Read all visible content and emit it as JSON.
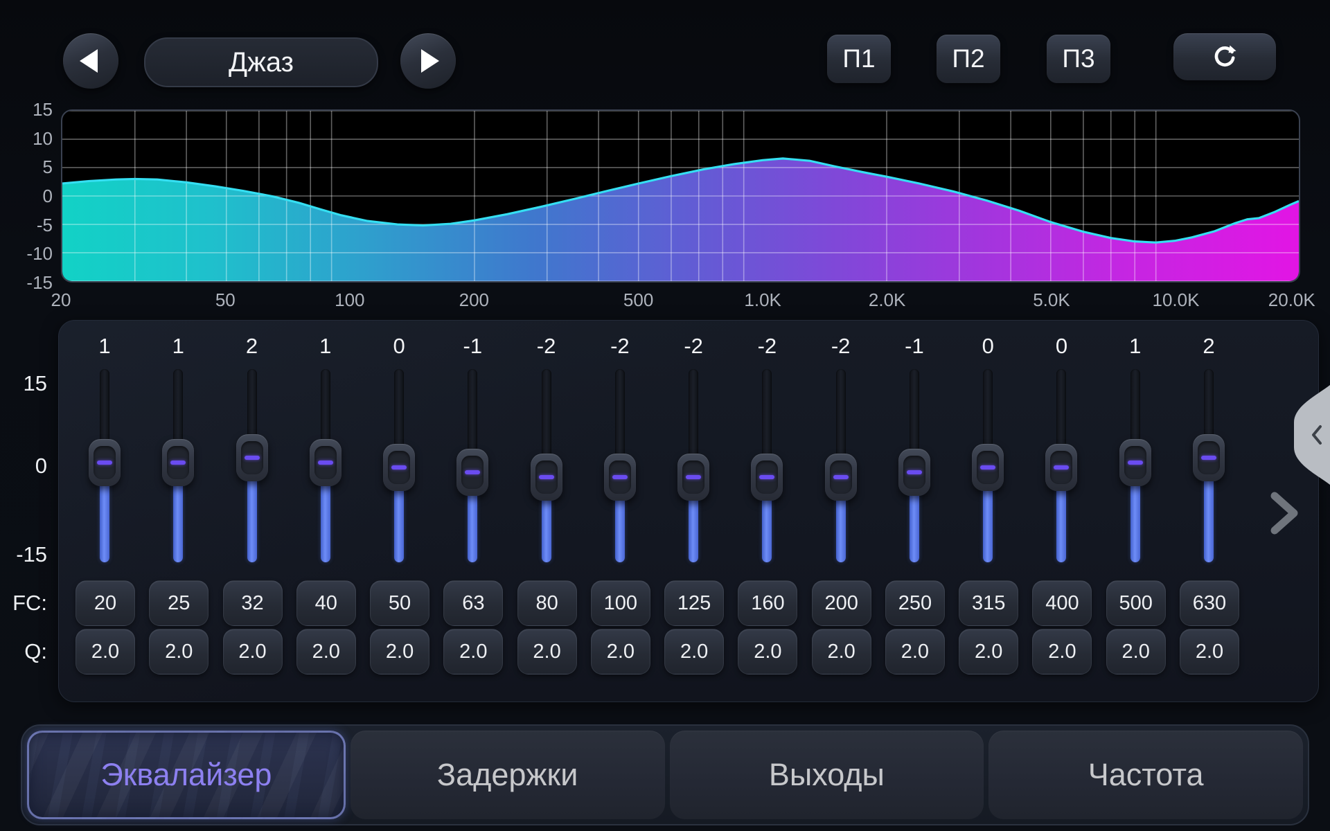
{
  "header": {
    "preset_name": "Джаз",
    "preset_slots": [
      "П1",
      "П2",
      "П3"
    ]
  },
  "chart_data": {
    "type": "area",
    "title": "",
    "xlabel": "frequency-hz-log-scale",
    "ylabel": "gain-db",
    "xlim": [
      20,
      20000
    ],
    "ylim": [
      -15,
      15
    ],
    "grid": true,
    "y_ticks": [
      15,
      10,
      5,
      0,
      -5,
      -10,
      -15
    ],
    "x_ticks": [
      {
        "label": "20",
        "f": 20
      },
      {
        "label": "50",
        "f": 50
      },
      {
        "label": "100",
        "f": 100
      },
      {
        "label": "200",
        "f": 200
      },
      {
        "label": "500",
        "f": 500
      },
      {
        "label": "1.0K",
        "f": 1000
      },
      {
        "label": "2.0K",
        "f": 2000
      },
      {
        "label": "5.0K",
        "f": 5000
      },
      {
        "label": "10.0K",
        "f": 10000
      },
      {
        "label": "20.0K",
        "f": 20000
      }
    ],
    "points": [
      [
        20,
        2.2
      ],
      [
        23,
        2.6
      ],
      [
        27,
        2.9
      ],
      [
        30,
        3.0
      ],
      [
        34,
        2.9
      ],
      [
        40,
        2.4
      ],
      [
        47,
        1.7
      ],
      [
        55,
        0.9
      ],
      [
        65,
        -0.1
      ],
      [
        75,
        -1.2
      ],
      [
        85,
        -2.4
      ],
      [
        95,
        -3.4
      ],
      [
        110,
        -4.4
      ],
      [
        130,
        -5.0
      ],
      [
        150,
        -5.2
      ],
      [
        175,
        -4.9
      ],
      [
        200,
        -4.3
      ],
      [
        240,
        -3.2
      ],
      [
        290,
        -1.9
      ],
      [
        350,
        -0.5
      ],
      [
        420,
        0.9
      ],
      [
        500,
        2.2
      ],
      [
        600,
        3.5
      ],
      [
        720,
        4.7
      ],
      [
        850,
        5.6
      ],
      [
        1000,
        6.3
      ],
      [
        1120,
        6.6
      ],
      [
        1300,
        6.2
      ],
      [
        1500,
        5.2
      ],
      [
        1750,
        4.2
      ],
      [
        2000,
        3.4
      ],
      [
        2400,
        2.2
      ],
      [
        2900,
        0.8
      ],
      [
        3500,
        -0.8
      ],
      [
        4200,
        -2.6
      ],
      [
        5000,
        -4.6
      ],
      [
        6000,
        -6.3
      ],
      [
        7000,
        -7.4
      ],
      [
        8000,
        -8.0
      ],
      [
        9000,
        -8.2
      ],
      [
        10000,
        -7.9
      ],
      [
        11000,
        -7.3
      ],
      [
        12500,
        -6.2
      ],
      [
        14000,
        -4.8
      ],
      [
        15000,
        -4.1
      ],
      [
        16000,
        -3.9
      ],
      [
        17500,
        -2.8
      ],
      [
        19000,
        -1.6
      ],
      [
        20000,
        -0.9
      ]
    ],
    "line_color": "#35dff2",
    "grid_color": "rgba(255,255,255,0.38)",
    "fill_gradient": [
      {
        "offset": "0%",
        "color": "#12d2c6"
      },
      {
        "offset": "12%",
        "color": "#1fc0cc"
      },
      {
        "offset": "25%",
        "color": "#2f9ecd"
      },
      {
        "offset": "38%",
        "color": "#3f78cd"
      },
      {
        "offset": "50%",
        "color": "#5f5ed4"
      },
      {
        "offset": "62%",
        "color": "#7e49d8"
      },
      {
        "offset": "74%",
        "color": "#a136dd"
      },
      {
        "offset": "86%",
        "color": "#c526e2"
      },
      {
        "offset": "100%",
        "color": "#e215e4"
      }
    ]
  },
  "equalizer": {
    "scale_labels": [
      "15",
      "0",
      "-15"
    ],
    "fc_label": "FC:",
    "q_label": "Q:",
    "bands": [
      {
        "fc": "20",
        "gain": 1,
        "q": "2.0"
      },
      {
        "fc": "25",
        "gain": 1,
        "q": "2.0"
      },
      {
        "fc": "32",
        "gain": 2,
        "q": "2.0"
      },
      {
        "fc": "40",
        "gain": 1,
        "q": "2.0"
      },
      {
        "fc": "50",
        "gain": 0,
        "q": "2.0"
      },
      {
        "fc": "63",
        "gain": -1,
        "q": "2.0"
      },
      {
        "fc": "80",
        "gain": -2,
        "q": "2.0"
      },
      {
        "fc": "100",
        "gain": -2,
        "q": "2.0"
      },
      {
        "fc": "125",
        "gain": -2,
        "q": "2.0"
      },
      {
        "fc": "160",
        "gain": -2,
        "q": "2.0"
      },
      {
        "fc": "200",
        "gain": -2,
        "q": "2.0"
      },
      {
        "fc": "250",
        "gain": -1,
        "q": "2.0"
      },
      {
        "fc": "315",
        "gain": 0,
        "q": "2.0"
      },
      {
        "fc": "400",
        "gain": 0,
        "q": "2.0"
      },
      {
        "fc": "500",
        "gain": 1,
        "q": "2.0"
      },
      {
        "fc": "630",
        "gain": 2,
        "q": "2.0"
      }
    ]
  },
  "tabs": [
    {
      "label": "Эквалайзер",
      "active": true
    },
    {
      "label": "Задержки",
      "active": false
    },
    {
      "label": "Выходы",
      "active": false
    },
    {
      "label": "Частота",
      "active": false
    }
  ],
  "colors": {
    "accent_line": "#35dff2",
    "slider_fill": "#5b7ef2",
    "handle_dash": "#6a4cf0",
    "active_tab_text": "#8d80f0",
    "button_face": "#2b303c",
    "plot_background": "#000000"
  }
}
